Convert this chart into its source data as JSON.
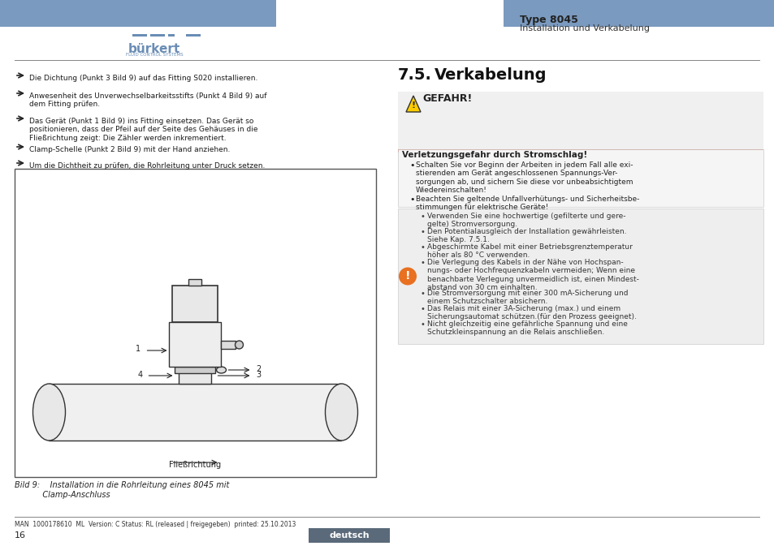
{
  "header_blue": "#7a9abf",
  "header_text_bold": "Type 8045",
  "header_text_normal": "Installation und Verkabelung",
  "burkert_color": "#6a8db5",
  "footer_bg": "#5a6a7a",
  "footer_text": "deutsch",
  "footer_page": "16",
  "footer_version": "MAN  1000178610  ML  Version: C Status: RL (released | freigegeben)  printed: 25.10.2013",
  "left_bullets": [
    "Die Dichtung (Punkt 3 Bild 9) auf das Fitting S020 installieren.",
    "Anwesenheit des Unverwechselbarkeitsstifts (Punkt 4 Bild 9) auf\ndem Fitting prüfen.",
    "Das Gerät (Punkt 1 Bild 9) ins Fitting einsetzen. Das Gerät so\npositionieren, dass der Pfeil auf der Seite des Gehäuses in die\nFließrichtung zeigt: Die Zähler werden inkrementiert.",
    "Clamp-Schelle (Punkt 2 Bild 9) mit der Hand anziehen.",
    "Um die Dichtheit zu prüfen, die Rohrleitung unter Druck setzen."
  ],
  "bild_underline_positions": [
    [
      0,
      "Bild 9"
    ],
    [
      1,
      "Bild 9"
    ],
    [
      2,
      "Bild 9"
    ],
    [
      3,
      "Bild 9"
    ]
  ],
  "section_title": "7.5.",
  "section_title2": "Verkabelung",
  "danger_title": "GEFAHR!",
  "danger_bg": "#e8e8e8",
  "danger_red": "#cc0000",
  "danger_red_bar": "#cc2200",
  "warning_title": "Verletzungsgefahr durch Stromschlag!",
  "warning_bullets": [
    "Schalten Sie vor Beginn der Arbeiten in jedem Fall alle exi-\nstierenden am Gerät angeschlossenen Spannungs-Ver-\nsorgungen ab, und sichern Sie diese vor unbeabsichtigtem\nWiedereinschalten!",
    "Beachten Sie geltende Unfallverhütungs- und Sicherheitsbe-\nstimmungen für elektrische Geräte!"
  ],
  "info_bullets": [
    "Verwenden Sie eine hochwertige (gefilterte und gere-\ngelte) Stromversorgung.",
    "Den Potentialausgleich der Installation gewährleisten.\nSiehe Kap. 7.5.1.",
    "Abgeschirmte Kabel mit einer Betriebsgrenztemperatur\nhöher als 80 °C verwenden.",
    "Die Verlegung des Kabels in der Nähe von Hochspan-\nnungs- oder Hochfrequenzkabeln vermeiden; Wenn eine\nbenachbarte Verlegung unvermeidlich ist, einen Mindest-\nabstand von 30 cm einhalten.",
    "Die Stromversorgung mit einer 300 mA-Sicherung und\neinem Schutzschalter absichern.",
    "Das Relais mit einer 3A-Sicherung (max.) und einem\nSicherungsautomat schützen.(für den Prozess geeignet).",
    "Nicht gleichzeitig eine gefährliche Spannung und eine\nSchutzkleinspannung an die Relais anschließen."
  ],
  "caption": "Bild 9:    Installation in die Rohrleitung eines 8045 mit\n           Clamp-Anschluss",
  "bg_color": "#ffffff",
  "text_color": "#1a1a1a",
  "light_gray": "#d8d8d8",
  "info_gray": "#e0e0e0"
}
